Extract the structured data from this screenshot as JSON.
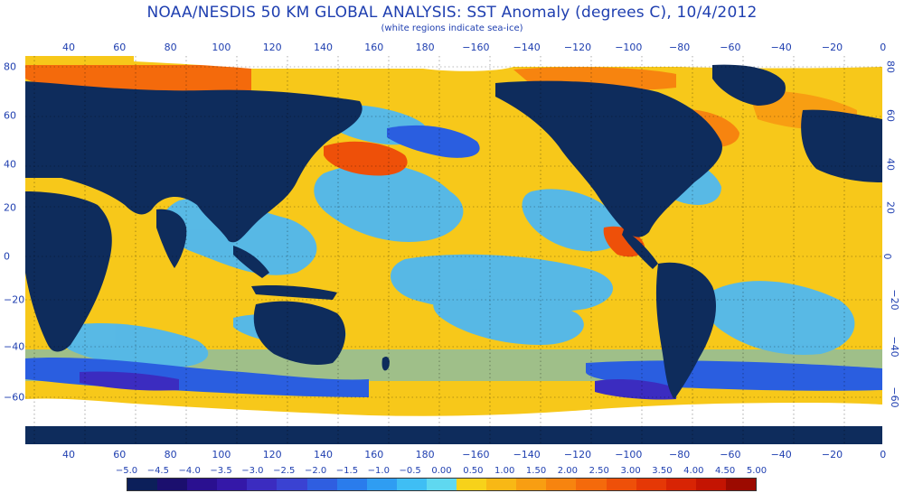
{
  "title": "NOAA/NESDIS 50 KM GLOBAL ANALYSIS: SST Anomaly (degrees C), 10/4/2012",
  "subtitle": "(white regions indicate sea-ice)",
  "lon_ticks": [
    "40",
    "60",
    "80",
    "100",
    "120",
    "140",
    "160",
    "180",
    "−160",
    "−140",
    "−120",
    "−100",
    "−80",
    "−60",
    "−40",
    "−20",
    "0"
  ],
  "lat_ticks_left": [
    "80",
    "60",
    "40",
    "20",
    "0",
    "−20",
    "−40",
    "−60"
  ],
  "lat_ticks_right": [
    "80",
    "60",
    "40",
    "20",
    "0",
    "−20",
    "−40",
    "−60"
  ],
  "colorbar": {
    "labels": [
      "−5.0",
      "−4.5",
      "−4.0",
      "−3.5",
      "−3.0",
      "−2.5",
      "−2.0",
      "−1.5",
      "−1.0",
      "−0.5",
      "0.00",
      "0.50",
      "1.00",
      "1.50",
      "2.00",
      "2.50",
      "3.00",
      "3.50",
      "4.00",
      "4.50",
      "5.00"
    ],
    "colors": [
      "#0c1f5a",
      "#1b0f6e",
      "#2a1090",
      "#3418a8",
      "#3b2cc0",
      "#3a42d2",
      "#2f5ee0",
      "#2a7cec",
      "#2f9df2",
      "#3fbef4",
      "#5fd8f0",
      "#f7d21a",
      "#f8b815",
      "#f89e12",
      "#f7840f",
      "#f46a0c",
      "#ee5009",
      "#e53806",
      "#d82404",
      "#c41402",
      "#9c0a00"
    ],
    "ice_color": "#ffffff",
    "land_color": "#0e2c5c"
  }
}
